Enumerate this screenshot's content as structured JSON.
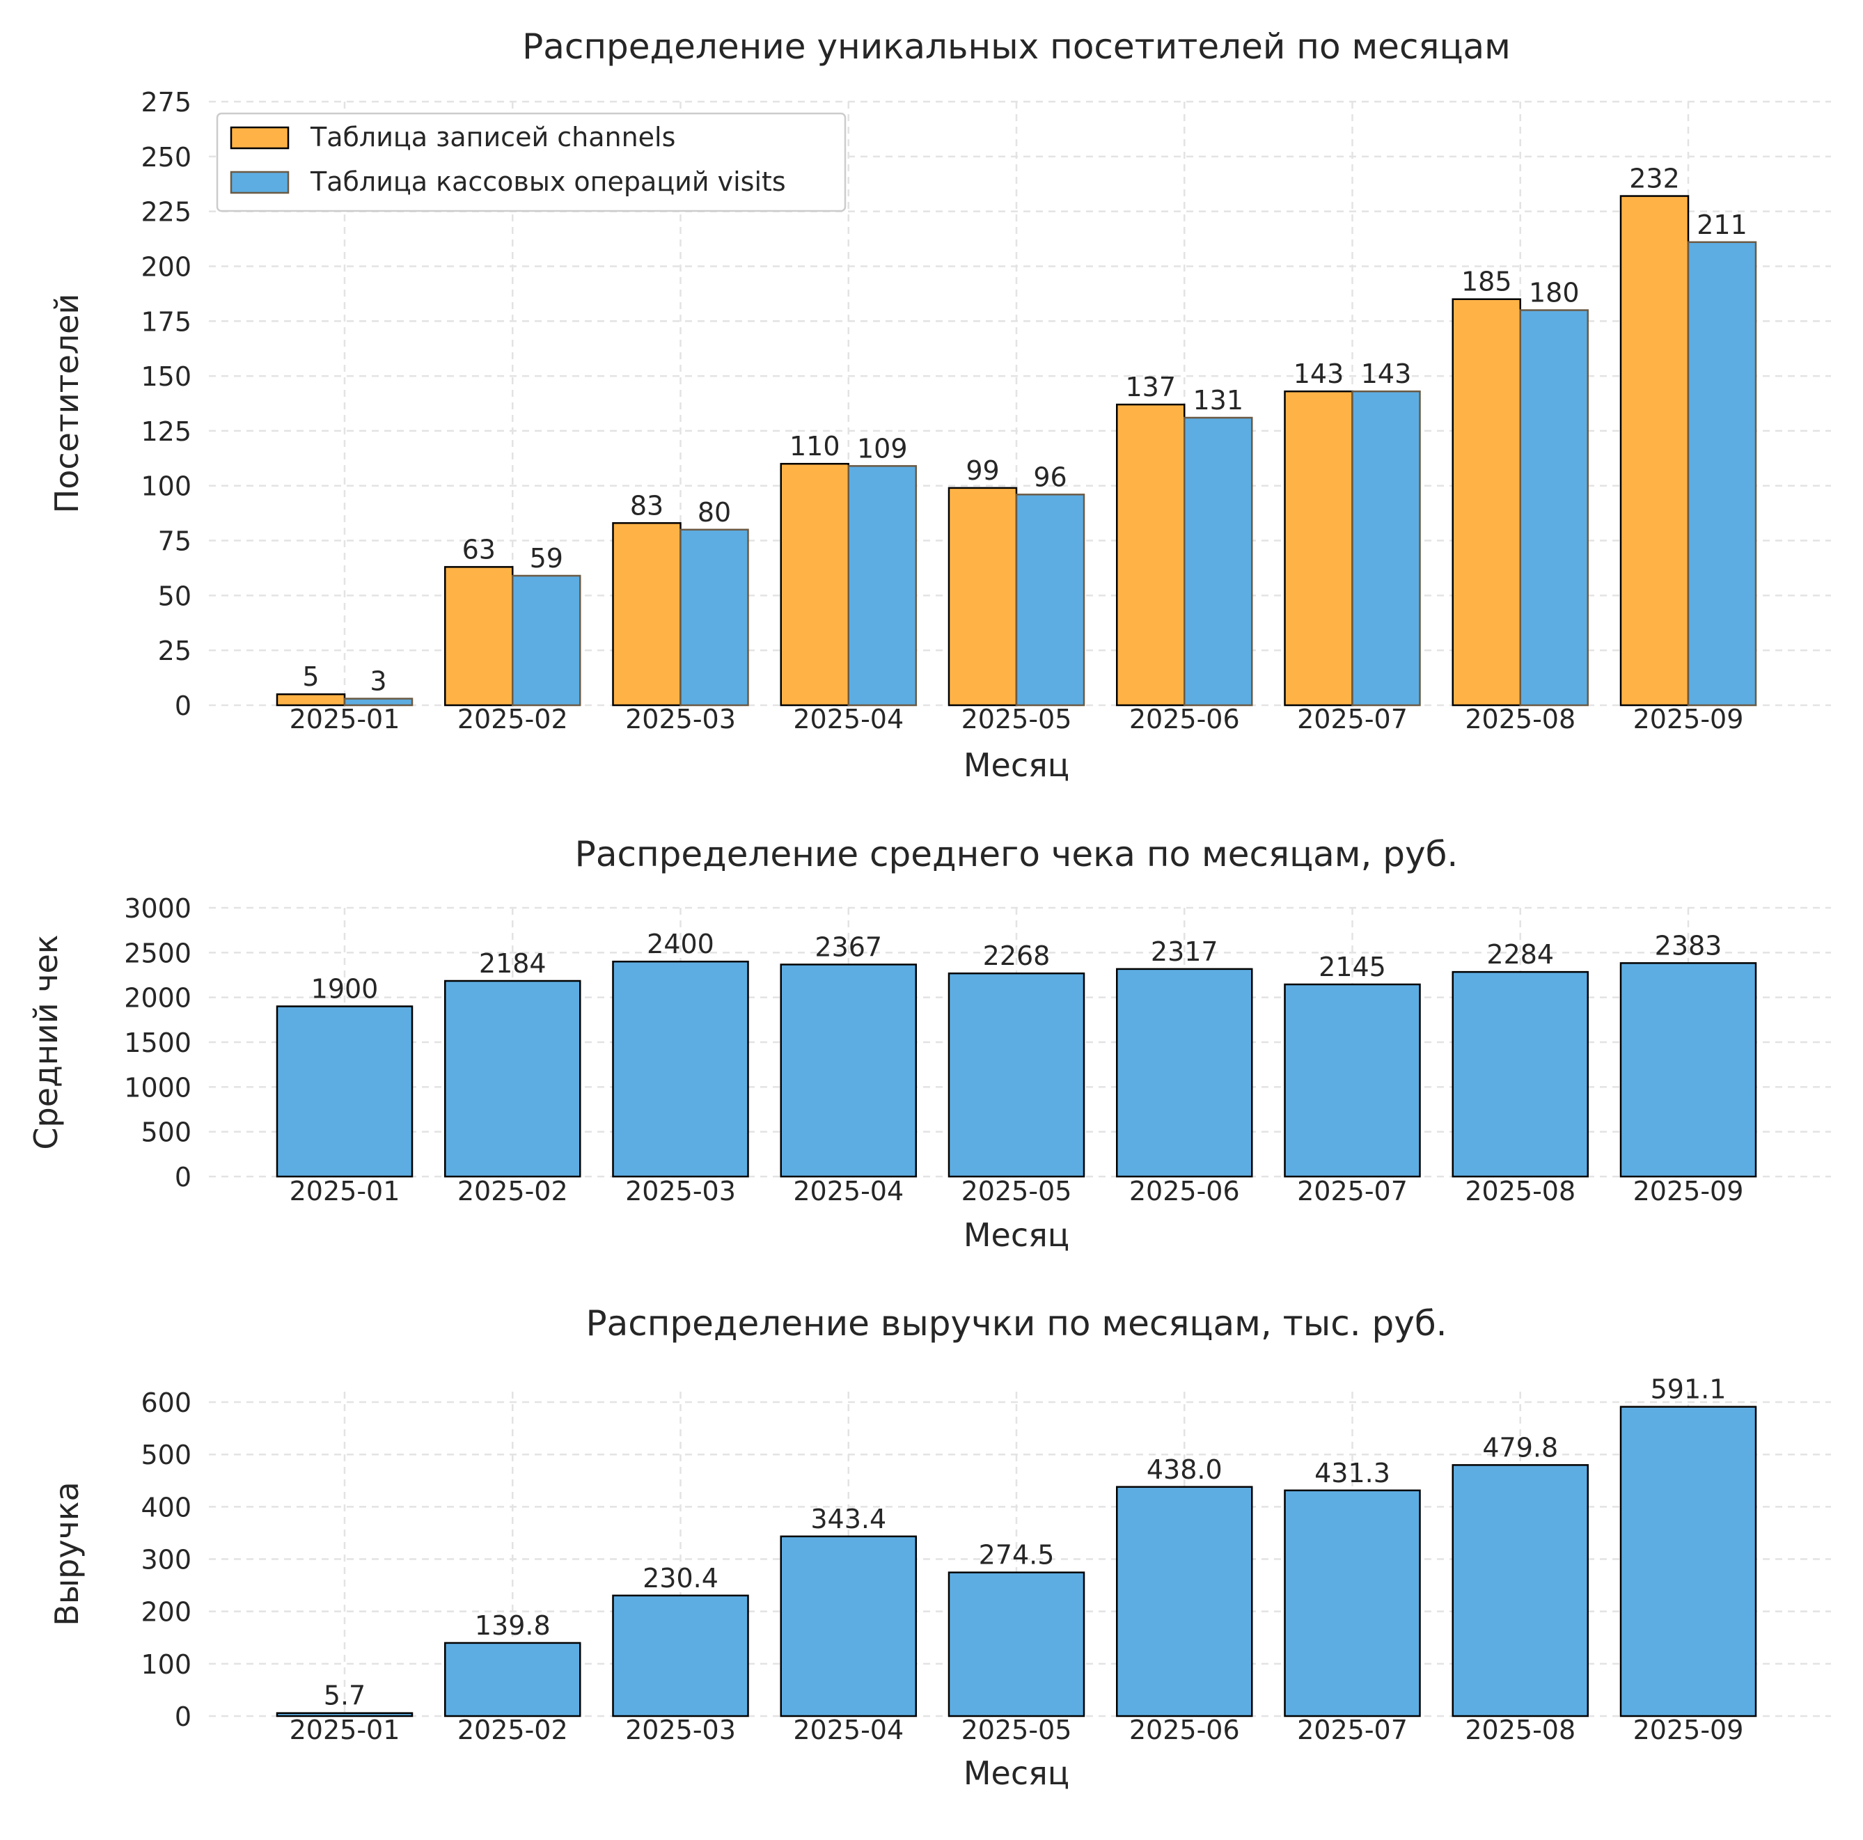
{
  "colors": {
    "orange": "#FFB347",
    "blue": "#5DADE2",
    "grid": "#e3e3e3",
    "text": "#262626"
  },
  "chart_data": [
    {
      "type": "bar",
      "title": "Распределение уникальных посетителей по месяцам",
      "xlabel": "Месяц",
      "ylabel": "Посетителей",
      "categories": [
        "2025-01",
        "2025-02",
        "2025-03",
        "2025-04",
        "2025-05",
        "2025-06",
        "2025-07",
        "2025-08",
        "2025-09"
      ],
      "series": [
        {
          "name": "Таблица записей channels",
          "color": "#FFB347",
          "values": [
            5,
            63,
            83,
            110,
            99,
            137,
            143,
            185,
            232
          ]
        },
        {
          "name": "Таблица кассовых операций visits",
          "color": "#5DADE2",
          "values": [
            3,
            59,
            80,
            109,
            96,
            131,
            143,
            180,
            211
          ]
        }
      ],
      "data_labels": [
        [
          "5",
          "63",
          "83",
          "110",
          "99",
          "137",
          "143",
          "185",
          "232"
        ],
        [
          "3",
          "59",
          "80",
          "109",
          "96",
          "131",
          "143",
          "180",
          "211"
        ]
      ],
      "ylim": [
        0,
        275
      ],
      "yticks": [
        0,
        25,
        50,
        75,
        100,
        125,
        150,
        175,
        200,
        225,
        250,
        275
      ],
      "ytick_labels": [
        "0",
        "25",
        "50",
        "75",
        "100",
        "125",
        "150",
        "175",
        "200",
        "225",
        "250",
        "275"
      ],
      "legend": "top-left",
      "grid": true
    },
    {
      "type": "bar",
      "title": "Распределение среднего чека по месяцам, руб.",
      "xlabel": "Месяц",
      "ylabel": "Средний чек",
      "categories": [
        "2025-01",
        "2025-02",
        "2025-03",
        "2025-04",
        "2025-05",
        "2025-06",
        "2025-07",
        "2025-08",
        "2025-09"
      ],
      "series": [
        {
          "color": "#5DADE2",
          "values": [
            1900,
            2184,
            2400,
            2367,
            2268,
            2317,
            2145,
            2284,
            2383
          ]
        }
      ],
      "data_labels": [
        [
          "1900",
          "2184",
          "2400",
          "2367",
          "2268",
          "2317",
          "2145",
          "2284",
          "2383"
        ]
      ],
      "ylim": [
        0,
        3000
      ],
      "yticks": [
        0,
        500,
        1000,
        1500,
        2000,
        2500,
        3000
      ],
      "ytick_labels": [
        "0",
        "500",
        "1000",
        "1500",
        "2000",
        "2500",
        "3000"
      ],
      "grid": true
    },
    {
      "type": "bar",
      "title": "Распределение выручки по месяцам, тыс. руб.",
      "xlabel": "Месяц",
      "ylabel": "Выручка",
      "categories": [
        "2025-01",
        "2025-02",
        "2025-03",
        "2025-04",
        "2025-05",
        "2025-06",
        "2025-07",
        "2025-08",
        "2025-09"
      ],
      "series": [
        {
          "color": "#5DADE2",
          "values": [
            5.7,
            139.8,
            230.4,
            343.4,
            274.5,
            438.0,
            431.3,
            479.8,
            591.1
          ]
        }
      ],
      "data_labels": [
        [
          "5.7",
          "139.8",
          "230.4",
          "343.4",
          "274.5",
          "438.0",
          "431.3",
          "479.8",
          "591.1"
        ]
      ],
      "ylim": [
        0,
        620
      ],
      "yticks": [
        0,
        100,
        200,
        300,
        400,
        500,
        600
      ],
      "ytick_labels": [
        "0",
        "100",
        "200",
        "300",
        "400",
        "500",
        "600"
      ],
      "grid": true
    }
  ]
}
